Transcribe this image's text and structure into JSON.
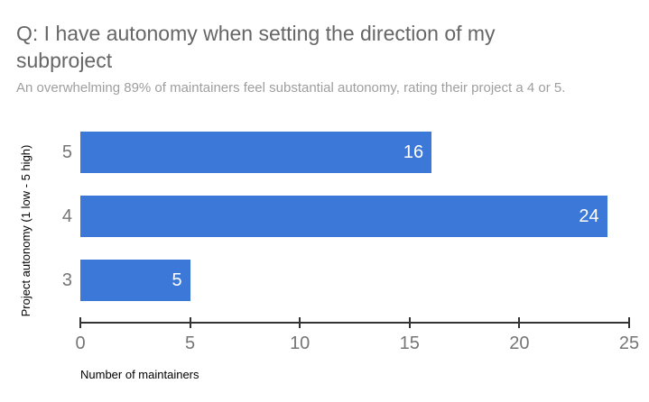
{
  "chart_data": {
    "type": "bar",
    "orientation": "horizontal",
    "title": "Q: I have autonomy when setting the direction of my subproject",
    "subtitle": "An overwhelming 89% of maintainers feel substantial autonomy, rating their project a 4 or 5.",
    "categories": [
      "5",
      "4",
      "3"
    ],
    "values": [
      16,
      24,
      5
    ],
    "xlabel": "Number of maintainers",
    "ylabel": "Project autonomy (1 low - 5 high)",
    "xlim": [
      0,
      25
    ],
    "xticks": [
      0,
      5,
      10,
      15,
      20,
      25
    ],
    "grid": false,
    "legend": "none",
    "value_labels": "inside-end"
  },
  "colors": {
    "bar": "#3c78d8",
    "bar_value_label": "#ffffff",
    "title_text": "#666666",
    "subtitle_text": "#9e9e9e",
    "tick_label": "#757575",
    "axis_line": "#333333",
    "axis_title": "#000000",
    "background": "#ffffff"
  }
}
